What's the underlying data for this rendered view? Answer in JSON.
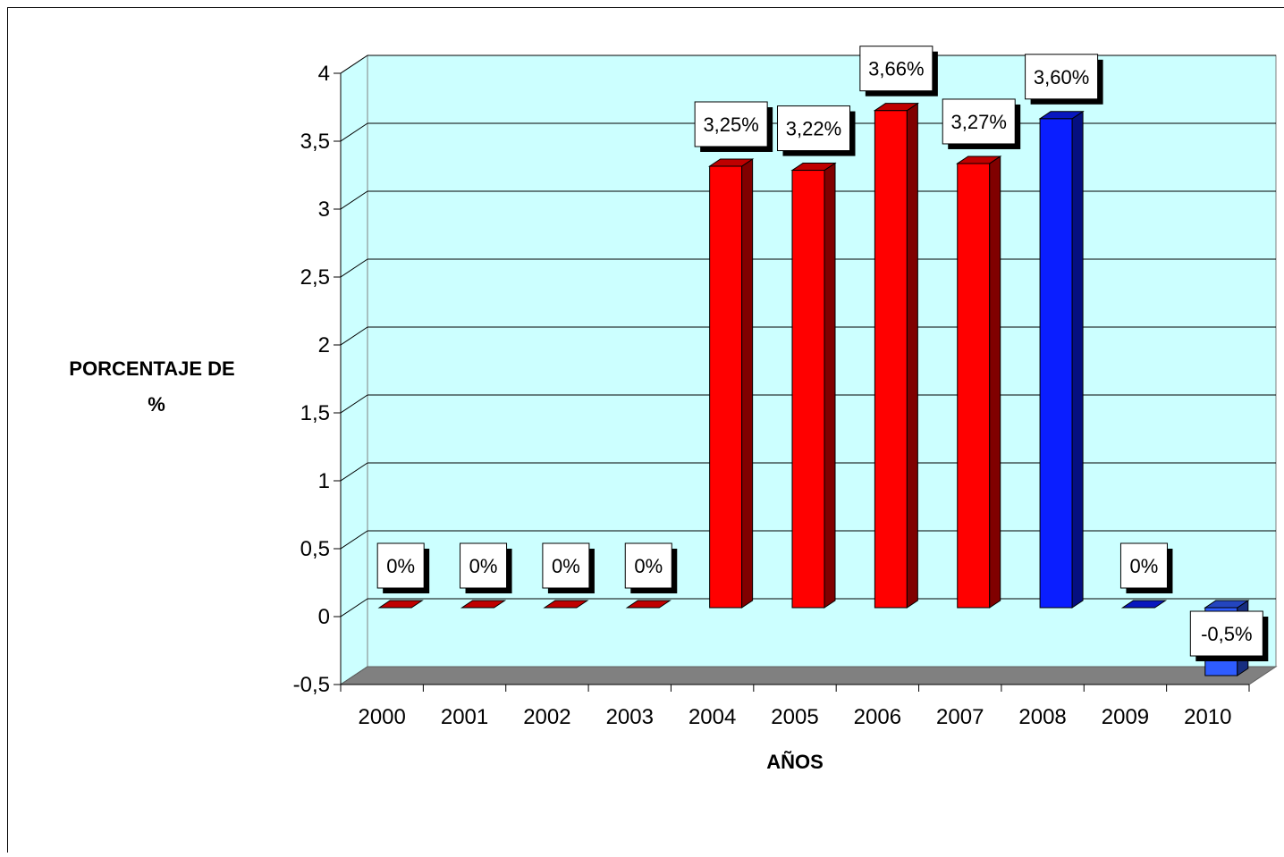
{
  "chart_data": {
    "type": "bar",
    "title": "",
    "xlabel": "AÑOS",
    "ylabel": "PORCENTAJE DE %",
    "ylabel_lines": [
      "PORCENTAJE DE",
      "%"
    ],
    "ylim": [
      -0.5,
      4
    ],
    "yticks": [
      "-0,5",
      "0",
      "0,5",
      "1",
      "1,5",
      "2",
      "2,5",
      "3",
      "3,5",
      "4"
    ],
    "ytick_values": [
      -0.5,
      0,
      0.5,
      1,
      1.5,
      2,
      2.5,
      3,
      3.5,
      4
    ],
    "grid": true,
    "legend": "none",
    "categories": [
      "2000",
      "2001",
      "2002",
      "2003",
      "2004",
      "2005",
      "2006",
      "2007",
      "2008",
      "2009",
      "2010"
    ],
    "values": [
      0,
      0,
      0,
      0,
      3.25,
      3.22,
      3.66,
      3.27,
      3.6,
      0,
      -0.5
    ],
    "data_labels": [
      "0%",
      "0%",
      "0%",
      "0%",
      "3,25%",
      "3,22%",
      "3,66%",
      "3,27%",
      "3,60%",
      "0%",
      "-0,5%"
    ],
    "bar_colors": [
      "#ff0000",
      "#ff0000",
      "#ff0000",
      "#ff0000",
      "#ff0000",
      "#ff0000",
      "#ff0000",
      "#ff0000",
      "#0a1eff",
      "#0a1eff",
      "#2e5cff"
    ],
    "colors": {
      "plot_background": "#ccffff",
      "floor": "#808080",
      "red_bar": "#ff0000",
      "blue_bar": "#0a1eff",
      "light_blue_bar": "#2e5cff"
    }
  }
}
